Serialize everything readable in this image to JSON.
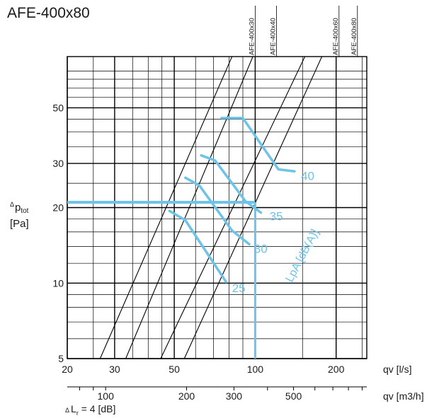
{
  "chart_data": {
    "type": "line",
    "title": "AFE-400x80",
    "scale": "log-log",
    "x": {
      "label": "qv [l/s]",
      "range": [
        20,
        260
      ],
      "ticks": [
        20,
        30,
        50,
        100,
        200
      ],
      "tick_labels": [
        "20",
        "30",
        "50",
        "100",
        "200"
      ]
    },
    "x2": {
      "label": "qv [m3/h]",
      "ticks": [
        100,
        200,
        300,
        500
      ],
      "tick_labels": [
        "100",
        "200",
        "300",
        "500"
      ]
    },
    "y": {
      "label_symbol": "Δ",
      "label_main": "p",
      "label_sub": "tot",
      "label_unit": "[Pa]",
      "range": [
        5,
        80
      ],
      "ticks": [
        5,
        10,
        20,
        30,
        50
      ],
      "tick_labels": [
        "5",
        "10",
        "20",
        "30",
        "50"
      ]
    },
    "footnote_symbol": "Δ",
    "footnote_main": "L",
    "footnote_sub": "r",
    "footnote_rest": " = 4 [dB]",
    "model_lines": [
      {
        "name": "AFE-400x30",
        "x_top": 100
      },
      {
        "name": "AFE-400x40",
        "x_top": 120
      },
      {
        "name": "AFE-400x60",
        "x_top": 205
      },
      {
        "name": "AFE-400x80",
        "x_top": 240
      }
    ],
    "diagonal_lines": [
      {
        "points": [
          [
            26.5,
            5
          ],
          [
            82,
            80
          ]
        ]
      },
      {
        "points": [
          [
            33,
            5
          ],
          [
            98,
            80
          ]
        ]
      },
      {
        "points": [
          [
            44.5,
            5
          ],
          [
            153,
            80
          ]
        ]
      },
      {
        "points": [
          [
            54.5,
            5
          ],
          [
            177,
            80
          ]
        ]
      }
    ],
    "noise_label": "LpA [dB(A)]",
    "noise_curves": [
      {
        "name": "25",
        "points": [
          [
            48,
            19.4
          ],
          [
            55,
            17.8
          ],
          [
            78,
            10.1
          ]
        ]
      },
      {
        "name": "30",
        "points": [
          [
            55,
            26.3
          ],
          [
            62,
            24.5
          ],
          [
            82,
            16.2
          ],
          [
            95,
            14.3
          ]
        ]
      },
      {
        "name": "35",
        "points": [
          [
            63,
            32.3
          ],
          [
            71,
            30.8
          ],
          [
            92,
            21.2
          ],
          [
            105,
            19.1
          ]
        ]
      },
      {
        "name": "40",
        "points": [
          [
            75,
            45.5
          ],
          [
            90,
            45.5
          ],
          [
            122,
            28.4
          ],
          [
            140,
            27.9
          ]
        ]
      }
    ],
    "curve_labels": [
      {
        "text": "25",
        "x": 82,
        "y": 9.2
      },
      {
        "text": "30",
        "x": 99,
        "y": 13.2
      },
      {
        "text": "35",
        "x": 113,
        "y": 17.8
      },
      {
        "text": "40",
        "x": 148,
        "y": 25.8
      }
    ],
    "operating_point": {
      "x": 100,
      "y": 21
    },
    "colors": {
      "curve": "#6ec3e8",
      "grid": "#000000",
      "text": "#1a1a1a"
    }
  }
}
